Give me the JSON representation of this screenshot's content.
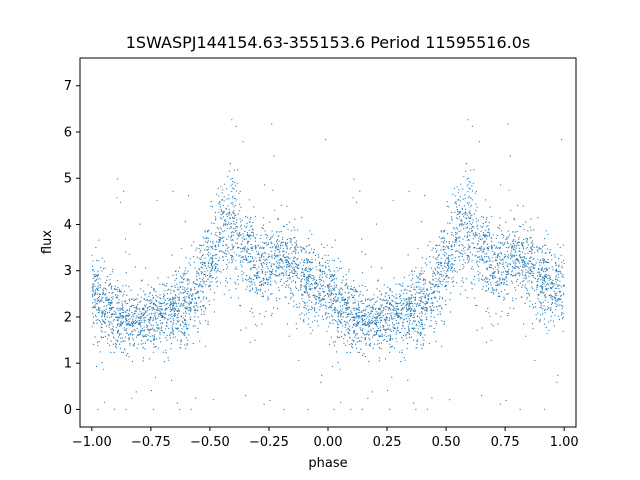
{
  "chart_data": {
    "type": "scatter",
    "title": "1SWASPJ144154.63-355153.6 Period 11595516.0s",
    "xlabel": "phase",
    "ylabel": "flux",
    "xlim": [
      -1.05,
      1.05
    ],
    "ylim": [
      -0.38,
      7.6
    ],
    "xticks": [
      -1.0,
      -0.75,
      -0.5,
      -0.25,
      0.0,
      0.25,
      0.5,
      0.75,
      1.0
    ],
    "xtick_labels": [
      "−1.00",
      "−0.75",
      "−0.50",
      "−0.25",
      "0.00",
      "0.25",
      "0.50",
      "0.75",
      "1.00"
    ],
    "yticks": [
      0,
      1,
      2,
      3,
      4,
      5,
      6,
      7
    ],
    "ytick_labels": [
      "0",
      "1",
      "2",
      "3",
      "4",
      "5",
      "6",
      "7"
    ],
    "grid": false,
    "legend": "none",
    "marker_color": "#1f77b4",
    "series_envelope": {
      "phase": [
        0.0,
        0.05,
        0.1,
        0.15,
        0.2,
        0.25,
        0.3,
        0.35,
        0.4,
        0.45,
        0.5,
        0.55,
        0.6,
        0.65,
        0.7,
        0.75,
        0.8,
        0.85,
        0.9,
        0.95,
        1.0
      ],
      "center": [
        2.6,
        2.2,
        2.0,
        1.9,
        1.9,
        1.9,
        2.0,
        2.1,
        2.2,
        2.6,
        3.2,
        3.8,
        4.0,
        3.5,
        3.1,
        3.1,
        3.3,
        3.1,
        2.8,
        2.7,
        2.6
      ],
      "spread": [
        0.8,
        0.8,
        0.7,
        0.6,
        0.6,
        0.7,
        0.7,
        0.7,
        0.8,
        0.9,
        0.9,
        1.0,
        1.2,
        1.0,
        0.9,
        0.8,
        0.8,
        0.8,
        0.8,
        0.8,
        0.8
      ]
    }
  }
}
